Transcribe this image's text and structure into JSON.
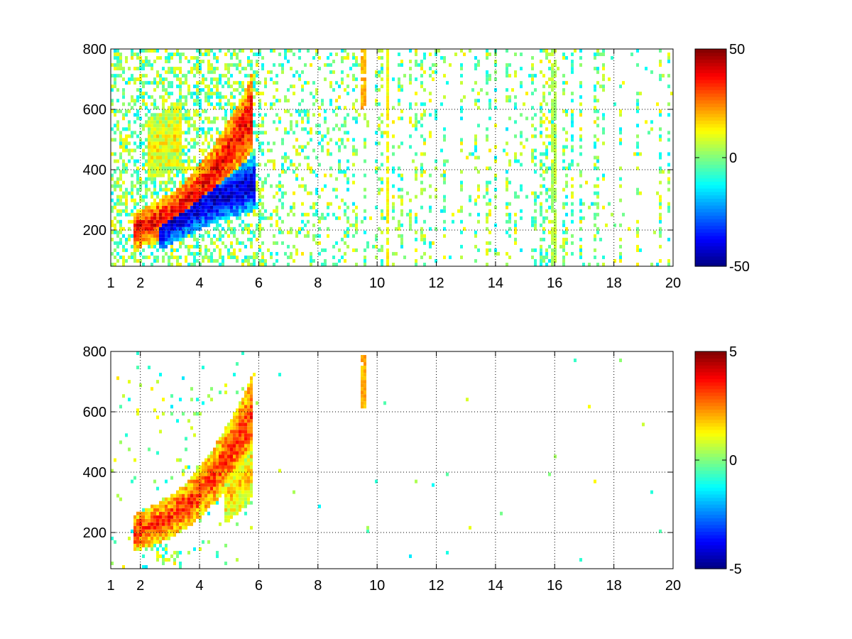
{
  "chart_data": [
    {
      "type": "heatmap",
      "title": "",
      "xlabel": "",
      "ylabel": "",
      "xlim": [
        1,
        20
      ],
      "ylim": [
        80,
        800
      ],
      "x_ticks": [
        1,
        2,
        4,
        6,
        8,
        10,
        12,
        14,
        16,
        18,
        20
      ],
      "x_tick_labels": [
        "1",
        "2",
        "4",
        "6",
        "8",
        "10",
        "12",
        "14",
        "16",
        "18",
        "20"
      ],
      "y_ticks": [
        200,
        400,
        600,
        800
      ],
      "y_tick_labels": [
        "200",
        "400",
        "600",
        "800"
      ],
      "grid": true,
      "colormap": "jet",
      "clim": [
        -50,
        50
      ],
      "colorbar_ticks": [
        -50,
        0,
        50
      ],
      "colorbar_tick_labels": [
        "-50",
        "0",
        "50"
      ],
      "ridges": [
        {
          "x": [
            1.8,
            2.5,
            3.0,
            3.5,
            4.0,
            4.5,
            5.0,
            5.5,
            5.8
          ],
          "y": [
            200,
            225,
            250,
            285,
            330,
            390,
            460,
            540,
            600
          ],
          "value": 38
        },
        {
          "x": [
            2.6,
            3.0,
            3.5,
            4.0,
            4.5,
            5.0,
            5.5,
            5.9
          ],
          "y": [
            190,
            215,
            245,
            275,
            300,
            320,
            340,
            355
          ],
          "value": -42
        },
        {
          "x": [
            2.2,
            2.6,
            3.0,
            3.4
          ],
          "y": [
            460,
            480,
            500,
            520
          ],
          "value": 12
        }
      ],
      "strong_columns": [
        {
          "x": 9.55,
          "y": [
            600,
            800
          ],
          "value": 20
        },
        {
          "x": 10.35,
          "y": [
            80,
            800
          ],
          "value": 12
        },
        {
          "x": 16.0,
          "y": [
            80,
            800
          ],
          "value": 5
        }
      ]
    },
    {
      "type": "heatmap",
      "title": "",
      "xlabel": "",
      "ylabel": "",
      "xlim": [
        1,
        20
      ],
      "ylim": [
        80,
        800
      ],
      "x_ticks": [
        1,
        2,
        4,
        6,
        8,
        10,
        12,
        14,
        16,
        18,
        20
      ],
      "x_tick_labels": [
        "1",
        "2",
        "4",
        "6",
        "8",
        "10",
        "12",
        "14",
        "16",
        "18",
        "20"
      ],
      "y_ticks": [
        200,
        400,
        600,
        800
      ],
      "y_tick_labels": [
        "200",
        "400",
        "600",
        "800"
      ],
      "grid": true,
      "colormap": "jet",
      "clim": [
        -5,
        5
      ],
      "colorbar_ticks": [
        -5,
        0,
        5
      ],
      "colorbar_tick_labels": [
        "-5",
        "0",
        "5"
      ],
      "ridges": [
        {
          "x": [
            1.8,
            2.5,
            3.0,
            3.5,
            4.0,
            4.5,
            5.0,
            5.5,
            5.8
          ],
          "y": [
            200,
            225,
            250,
            285,
            330,
            390,
            460,
            540,
            600
          ],
          "value": 3.2
        },
        {
          "x": [
            4.8,
            5.2,
            5.6,
            5.8
          ],
          "y": [
            300,
            340,
            380,
            420
          ],
          "value": 1.6
        }
      ],
      "strong_columns": [
        {
          "x": 9.55,
          "y": [
            610,
            790
          ],
          "value": 2.0
        }
      ]
    }
  ]
}
